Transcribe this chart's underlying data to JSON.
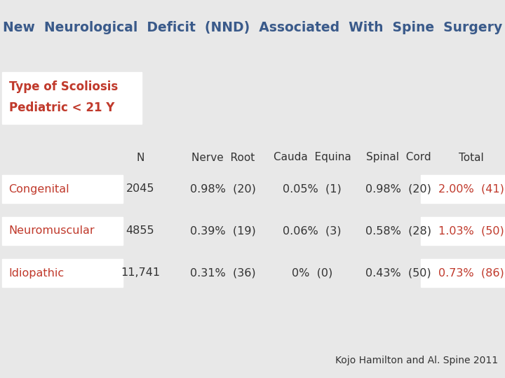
{
  "title": "New  Neurological  Deficit  (NND)  Associated  With  Spine  Surgery",
  "subtitle_line1": "Type of Scoliosis",
  "subtitle_line2": "Pediatric < 21 Y",
  "bg_color": "#e8e8e8",
  "title_color": "#3a5a8a",
  "subtitle_color": "#c0392b",
  "header_color": "#333333",
  "data_color": "#333333",
  "total_color": "#c0392b",
  "row_label_color": "#c0392b",
  "citation": "Kojo Hamilton and Al. Spine 2011",
  "headers": [
    "N",
    "Nerve  Root",
    "Cauda  Equina",
    "Spinal  Cord",
    "Total"
  ],
  "rows": [
    {
      "label": "Congenital",
      "N": "2045",
      "nerve_root": "0.98%  (20)",
      "cauda_equina": "0.05%  (1)",
      "spinal_cord": "0.98%  (20)",
      "total": "2.00%  (41)"
    },
    {
      "label": "Neuromuscular",
      "N": "4855",
      "nerve_root": "0.39%  (19)",
      "cauda_equina": "0.06%  (3)",
      "spinal_cord": "0.58%  (28)",
      "total": "1.03%  (50)"
    },
    {
      "label": "Idiopathic",
      "N": "11,741",
      "nerve_root": "0.31%  (36)",
      "cauda_equina": "0%  (0)",
      "spinal_cord": "0.43%  (50)",
      "total": "0.73%  (86)"
    }
  ]
}
